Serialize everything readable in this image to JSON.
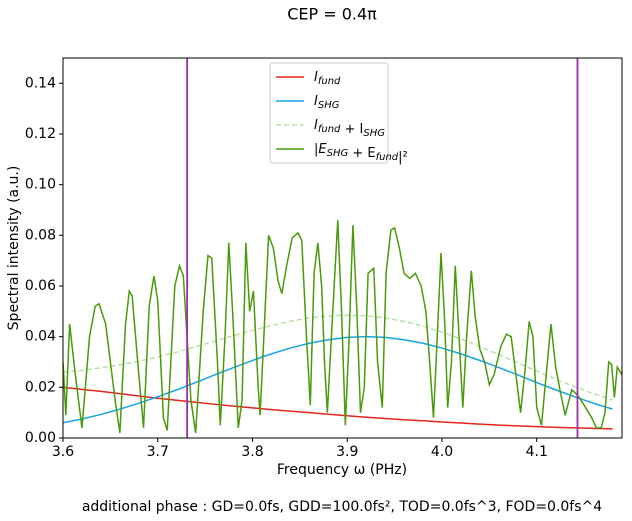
{
  "chart_data": {
    "type": "line",
    "title": "CEP = 0.4π",
    "x_label": "Frequency ω (PHz)",
    "y_label": "Spectral intensity (a.u.)",
    "footnote": "additional phase : GD=0.0fs, GDD=100.0fs², TOD=0.0fs^3, FOD=0.0fs^4",
    "xlim": [
      3.6,
      4.19
    ],
    "ylim": [
      0,
      0.15
    ],
    "xticks": [
      3.6,
      3.7,
      3.8,
      3.9,
      {
        "value": 4,
        "label": "4.0"
      },
      4.1
    ],
    "yticks": [
      {
        "value": 0,
        "label": "0.00"
      },
      {
        "value": 0.02,
        "label": "0.02"
      },
      {
        "value": 0.04,
        "label": "0.04"
      },
      {
        "value": 0.06,
        "label": "0.06"
      },
      {
        "value": 0.08,
        "label": "0.08"
      },
      {
        "value": 0.1,
        "label": "0.10"
      },
      {
        "value": 0.12,
        "label": "0.12"
      },
      {
        "value": 0.14,
        "label": "0.14"
      }
    ],
    "grid": false,
    "legend": "upper center",
    "vlines": [
      3.731,
      4.143
    ],
    "vline_color": "#9a2fa8",
    "x": [
      3.6,
      3.62,
      3.64,
      3.66,
      3.68,
      3.7,
      3.72,
      3.74,
      3.76,
      3.78,
      3.8,
      3.82,
      3.84,
      3.86,
      3.88,
      3.9,
      3.92,
      3.94,
      3.96,
      3.98,
      4.0,
      4.02,
      4.04,
      4.06,
      4.08,
      4.1,
      4.12,
      4.14,
      4.16,
      4.18
    ],
    "series": [
      {
        "name": "I_fund",
        "color": "#e8231c",
        "linestyle": "solid",
        "values": [
          0.02,
          0.0192,
          0.0184,
          0.0175,
          0.0166,
          0.0157,
          0.0149,
          0.0141,
          0.0133,
          0.0126,
          0.0119,
          0.0112,
          0.0106,
          0.01,
          0.0094,
          0.0088,
          0.0082,
          0.0077,
          0.0072,
          0.0068,
          0.0063,
          0.0059,
          0.0055,
          0.0051,
          0.0048,
          0.0045,
          0.0042,
          0.004,
          0.0038,
          0.0036
        ]
      },
      {
        "name": "I_SHG",
        "color": "#16a4e6",
        "linestyle": "solid",
        "values": [
          0.006,
          0.0075,
          0.0093,
          0.0114,
          0.0137,
          0.0163,
          0.019,
          0.0219,
          0.0249,
          0.0278,
          0.0306,
          0.0332,
          0.0355,
          0.0374,
          0.0388,
          0.0397,
          0.04,
          0.0397,
          0.0388,
          0.0374,
          0.0355,
          0.0332,
          0.0306,
          0.0278,
          0.0249,
          0.0219,
          0.019,
          0.0163,
          0.0137,
          0.0114
        ]
      },
      {
        "name": "I_fund + I_SHG",
        "color": "#b8e0a8",
        "linestyle": "dashed",
        "values": [
          0.026,
          0.0267,
          0.0277,
          0.0289,
          0.0303,
          0.032,
          0.0339,
          0.036,
          0.0382,
          0.0404,
          0.0425,
          0.0444,
          0.0461,
          0.0474,
          0.0482,
          0.0485,
          0.0482,
          0.0474,
          0.046,
          0.0442,
          0.0418,
          0.0391,
          0.0361,
          0.0329,
          0.0297,
          0.0264,
          0.0232,
          0.0203,
          0.0175,
          0.015
        ]
      },
      {
        "name": "|E_SHG + E_fund|²",
        "color": "#4a9a0c",
        "linestyle": "solid",
        "x": [
          3.6,
          3.603,
          3.607,
          3.613,
          3.62,
          3.628,
          3.634,
          3.638,
          3.645,
          3.655,
          3.66,
          3.666,
          3.67,
          3.673,
          3.68,
          3.685,
          3.691,
          3.696,
          3.7,
          3.706,
          3.71,
          3.718,
          3.723,
          3.727,
          3.735,
          3.74,
          3.748,
          3.753,
          3.757,
          3.763,
          3.766,
          3.771,
          3.775,
          3.779,
          3.785,
          3.789,
          3.793,
          3.797,
          3.801,
          3.806,
          3.808,
          3.812,
          3.817,
          3.822,
          3.827,
          3.831,
          3.836,
          3.842,
          3.848,
          3.852,
          3.857,
          3.861,
          3.865,
          3.869,
          3.873,
          3.876,
          3.879,
          3.884,
          3.89,
          3.894,
          3.898,
          3.902,
          3.906,
          3.91,
          3.914,
          3.918,
          3.922,
          3.928,
          3.932,
          3.937,
          3.941,
          3.946,
          3.95,
          3.955,
          3.96,
          3.966,
          3.972,
          3.978,
          3.983,
          3.987,
          3.991,
          3.995,
          3.999,
          4.003,
          4.006,
          4.01,
          4.014,
          4.018,
          4.022,
          4.026,
          4.031,
          4.035,
          4.04,
          4.045,
          4.05,
          4.055,
          4.062,
          4.068,
          4.073,
          4.078,
          4.083,
          4.088,
          4.092,
          4.096,
          4.1,
          4.105,
          4.11,
          4.115,
          4.12,
          4.125,
          4.13,
          4.137,
          4.143,
          4.15,
          4.158,
          4.163,
          4.168,
          4.172,
          4.176,
          4.179,
          4.182,
          4.185,
          4.19
        ],
        "values": [
          0.03,
          0.009,
          0.045,
          0.025,
          0.004,
          0.04,
          0.052,
          0.053,
          0.045,
          0.015,
          0.002,
          0.045,
          0.058,
          0.056,
          0.025,
          0.004,
          0.052,
          0.064,
          0.054,
          0.008,
          0.003,
          0.06,
          0.068,
          0.064,
          0.015,
          0.002,
          0.05,
          0.072,
          0.071,
          0.03,
          0.005,
          0.04,
          0.077,
          0.05,
          0.004,
          0.015,
          0.077,
          0.05,
          0.058,
          0.02,
          0.009,
          0.04,
          0.08,
          0.075,
          0.062,
          0.057,
          0.068,
          0.079,
          0.081,
          0.078,
          0.04,
          0.013,
          0.065,
          0.077,
          0.06,
          0.03,
          0.01,
          0.045,
          0.086,
          0.05,
          0.005,
          0.04,
          0.084,
          0.052,
          0.01,
          0.02,
          0.065,
          0.067,
          0.03,
          0.012,
          0.065,
          0.082,
          0.083,
          0.075,
          0.065,
          0.063,
          0.065,
          0.06,
          0.05,
          0.03,
          0.008,
          0.04,
          0.073,
          0.045,
          0.012,
          0.03,
          0.068,
          0.04,
          0.012,
          0.04,
          0.066,
          0.048,
          0.035,
          0.03,
          0.021,
          0.025,
          0.036,
          0.041,
          0.04,
          0.025,
          0.01,
          0.028,
          0.046,
          0.04,
          0.012,
          0.005,
          0.025,
          0.045,
          0.028,
          0.018,
          0.009,
          0.019,
          0.017,
          0.013,
          0.008,
          0.004,
          0.004,
          0.01,
          0.03,
          0.029,
          0.016,
          0.028,
          0.025
        ]
      }
    ]
  }
}
